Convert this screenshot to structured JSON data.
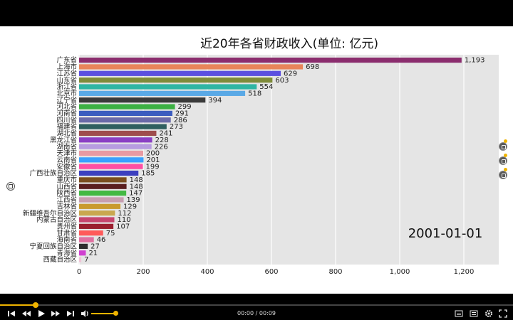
{
  "chart_data": {
    "type": "bar",
    "title": "近20年各省财政收入(单位: 亿元)",
    "date": "2001-01-01",
    "xlim": [
      0,
      1300
    ],
    "xticks": [
      0,
      200,
      400,
      600,
      800,
      1000,
      1200
    ],
    "xtick_labels": [
      "0",
      "200",
      "400",
      "600",
      "800",
      "1,000",
      "1,200"
    ],
    "grid": true,
    "orientation": "horizontal",
    "categories": [
      "广东省",
      "上海市",
      "江苏省",
      "山东省",
      "浙江省",
      "北京市",
      "辽宁省",
      "河北省",
      "河南省",
      "四川省",
      "福建省",
      "湖北省",
      "黑龙江省",
      "湖南省",
      "天津市",
      "云南省",
      "安徽省",
      "广西壮族自治区",
      "重庆市",
      "山西省",
      "陕西省",
      "江西省",
      "吉林省",
      "新疆维吾尔自治区",
      "内蒙古自治区",
      "贵州省",
      "甘肃省",
      "海南省",
      "宁夏回族自治区",
      "青海省",
      "西藏自治区"
    ],
    "values": [
      1193,
      698,
      629,
      603,
      554,
      518,
      394,
      299,
      291,
      286,
      273,
      241,
      228,
      226,
      200,
      201,
      199,
      185,
      148,
      148,
      147,
      139,
      129,
      112,
      110,
      107,
      75,
      46,
      27,
      21,
      7
    ],
    "value_labels": [
      "1,193",
      "698",
      "629",
      "603",
      "554",
      "518",
      "394",
      "299",
      "291",
      "286",
      "273",
      "241",
      "228",
      "226",
      "200",
      "201",
      "199",
      "185",
      "148",
      "148",
      "147",
      "139",
      "129",
      "112",
      "110",
      "107",
      "75",
      "46",
      "27",
      "21",
      "7"
    ],
    "colors": [
      "#8b2d6e",
      "#e8855a",
      "#5b4fe0",
      "#7e8b3a",
      "#2fb5a3",
      "#5aa9e6",
      "#3a3a3a",
      "#3cb043",
      "#3b5cbf",
      "#6a6aa8",
      "#2f5f5f",
      "#9e4d4d",
      "#8a3fc4",
      "#b79ce0",
      "#e89aa3",
      "#3aa0ff",
      "#ff4fa3",
      "#3b3fbf",
      "#7a4e1f",
      "#5a1e1e",
      "#43b943",
      "#c79fb0",
      "#c99a2e",
      "#c9a74e",
      "#c6456e",
      "#9a1e2e",
      "#ff5a5a",
      "#e06fa0",
      "#2e2e2e",
      "#d03fd0",
      "#f0c3d6"
    ]
  },
  "player": {
    "time": "00:00 / 00:09",
    "progress": 0.07,
    "volume": 0.9
  }
}
